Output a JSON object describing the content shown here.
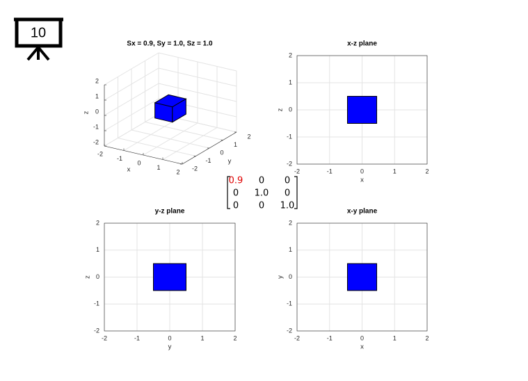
{
  "slide_number": "10",
  "matrix": {
    "rows": [
      [
        "0.9",
        "0",
        "0"
      ],
      [
        "0",
        "1.0",
        "0"
      ],
      [
        "0",
        "0",
        "1.0"
      ]
    ]
  },
  "chart_data": [
    {
      "type": "cube3d",
      "title": "Sx = 0.9, Sy = 1.0, Sz = 1.0",
      "xlabel": "x",
      "ylabel": "y",
      "zlabel": "z",
      "xlim": [
        -2,
        2
      ],
      "ylim": [
        -2,
        2
      ],
      "zlim": [
        -2,
        2
      ],
      "xticks": [
        -2,
        -1,
        0,
        1,
        2
      ],
      "yticks": [
        -2,
        -1,
        0,
        1,
        2
      ],
      "zticks": [
        -2,
        -1,
        0,
        1,
        2
      ],
      "xrange": [
        -0.45,
        0.45
      ],
      "yrange": [
        -0.5,
        0.5
      ],
      "zrange": [
        -0.5,
        0.5
      ],
      "color": "#0000ff",
      "grid": true
    },
    {
      "type": "rect",
      "title": "x-z plane",
      "xlabel": "x",
      "ylabel": "z",
      "xlim": [
        -2,
        2
      ],
      "ylim": [
        -2,
        2
      ],
      "xticks": [
        -2,
        -1,
        0,
        1,
        2
      ],
      "yticks": [
        -2,
        -1,
        0,
        1,
        2
      ],
      "xrange": [
        -0.45,
        0.45
      ],
      "yrange": [
        -0.5,
        0.5
      ],
      "color": "#0000ff",
      "grid": true
    },
    {
      "type": "rect",
      "title": "y-z plane",
      "xlabel": "y",
      "ylabel": "z",
      "xlim": [
        -2,
        2
      ],
      "ylim": [
        -2,
        2
      ],
      "xticks": [
        -2,
        -1,
        0,
        1,
        2
      ],
      "yticks": [
        -2,
        -1,
        0,
        1,
        2
      ],
      "xrange": [
        -0.5,
        0.5
      ],
      "yrange": [
        -0.5,
        0.5
      ],
      "color": "#0000ff",
      "grid": true
    },
    {
      "type": "rect",
      "title": "x-y plane",
      "xlabel": "x",
      "ylabel": "y",
      "xlim": [
        -2,
        2
      ],
      "ylim": [
        -2,
        2
      ],
      "xticks": [
        -2,
        -1,
        0,
        1,
        2
      ],
      "yticks": [
        -2,
        -1,
        0,
        1,
        2
      ],
      "xrange": [
        -0.45,
        0.45
      ],
      "yrange": [
        -0.5,
        0.5
      ],
      "color": "#0000ff",
      "grid": true
    }
  ]
}
